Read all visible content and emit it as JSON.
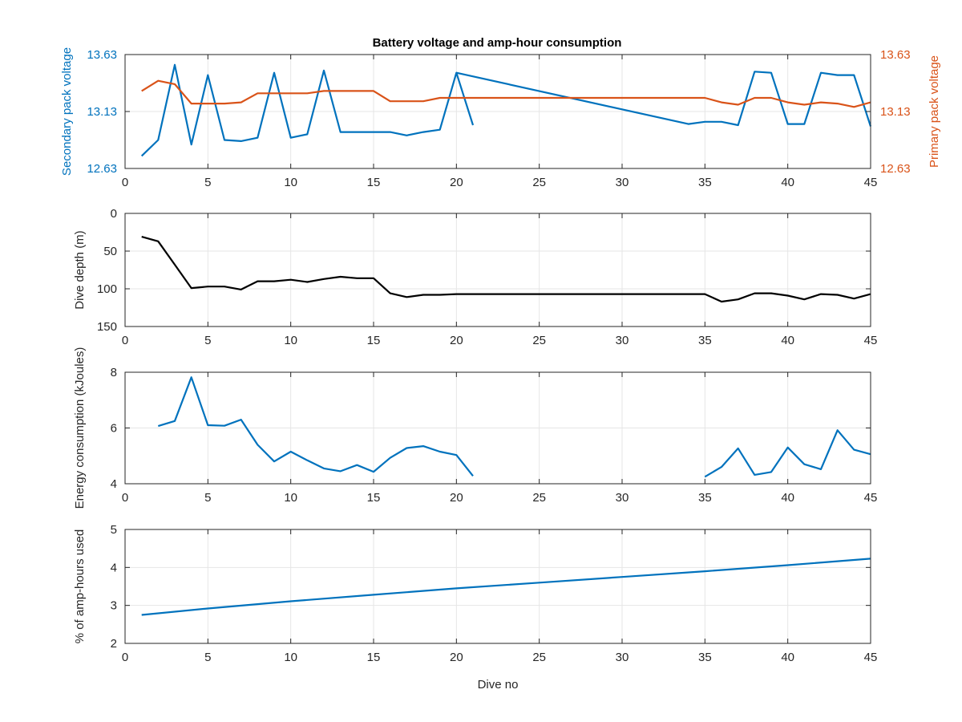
{
  "figure": {
    "title": "Battery voltage and amp-hour consumption"
  },
  "colors": {
    "blue": "#0072BD",
    "orange": "#D95319",
    "black": "#000000",
    "grid": "#e6e6e6",
    "axis": "#262626"
  },
  "chart_data": [
    {
      "type": "line",
      "title": "Battery voltage and amp-hour consumption",
      "xlabel": "",
      "ylabel": "Secondary pack voltage",
      "y2label": "Primary pack voltage",
      "xlim": [
        0,
        45
      ],
      "ylim": [
        12.63,
        13.63
      ],
      "y2lim": [
        12.63,
        13.63
      ],
      "xticks": [
        0,
        5,
        10,
        15,
        20,
        25,
        30,
        35,
        40,
        45
      ],
      "yticks": [
        12.63,
        13.13,
        13.63
      ],
      "ytick_labels": [
        "12.63",
        "13.13",
        "13.63"
      ],
      "y2ticks": [
        12.63,
        13.13,
        13.63
      ],
      "y2tick_labels": [
        "12.63",
        "13.13",
        "13.63"
      ],
      "grid": true,
      "series": [
        {
          "axis": "left",
          "color": "#0072BD",
          "x": [
            1,
            2,
            3,
            4,
            5,
            6,
            7,
            8,
            9,
            10,
            11,
            12,
            13,
            14,
            15,
            16,
            17,
            18,
            19,
            20,
            21
          ],
          "y": [
            12.74,
            12.88,
            13.54,
            12.84,
            13.45,
            12.88,
            12.87,
            12.9,
            13.47,
            12.9,
            12.93,
            13.49,
            12.95,
            12.95,
            12.95,
            12.95,
            12.92,
            12.95,
            12.97,
            13.47,
            13.01
          ]
        },
        {
          "axis": "left",
          "color": "#0072BD",
          "x": [
            20,
            34,
            35,
            36,
            37,
            38,
            39,
            40,
            41,
            42,
            43,
            44,
            45
          ],
          "y": [
            13.47,
            13.02,
            13.04,
            13.04,
            13.01,
            13.48,
            13.47,
            13.02,
            13.02,
            13.47,
            13.45,
            13.45,
            13.0
          ]
        },
        {
          "axis": "right",
          "color": "#D95319",
          "x": [
            1,
            2,
            3,
            4,
            5,
            6,
            7,
            8,
            9,
            10,
            11,
            12,
            13,
            14,
            15,
            16,
            17,
            18,
            19,
            20,
            25,
            30,
            35,
            36,
            37,
            38,
            39,
            40,
            41,
            42,
            43,
            44,
            45
          ],
          "y": [
            13.31,
            13.4,
            13.37,
            13.2,
            13.2,
            13.2,
            13.21,
            13.29,
            13.29,
            13.29,
            13.29,
            13.31,
            13.31,
            13.31,
            13.31,
            13.22,
            13.22,
            13.22,
            13.25,
            13.25,
            13.25,
            13.25,
            13.25,
            13.21,
            13.19,
            13.25,
            13.25,
            13.21,
            13.19,
            13.21,
            13.2,
            13.17,
            13.21
          ]
        }
      ]
    },
    {
      "type": "line",
      "xlabel": "",
      "ylabel": "Dive depth (m)",
      "xlim": [
        0,
        45
      ],
      "ylim": [
        0,
        150
      ],
      "y_reversed": true,
      "xticks": [
        0,
        5,
        10,
        15,
        20,
        25,
        30,
        35,
        40,
        45
      ],
      "yticks": [
        0,
        50,
        100,
        150
      ],
      "ytick_labels": [
        "0",
        "50",
        "100",
        "150"
      ],
      "grid": true,
      "series": [
        {
          "color": "#000000",
          "x": [
            1,
            2,
            3,
            4,
            5,
            6,
            7,
            8,
            9,
            10,
            11,
            12,
            13,
            14,
            15,
            16,
            17,
            18,
            19,
            20,
            25,
            30,
            35,
            36,
            37,
            38,
            39,
            40,
            41,
            42,
            43,
            44,
            45
          ],
          "y": [
            31,
            37,
            68,
            99,
            97,
            97,
            101,
            90,
            90,
            88,
            91,
            87,
            84,
            86,
            86,
            106,
            111,
            108,
            108,
            107,
            107,
            107,
            107,
            117,
            114,
            106,
            106,
            109,
            114,
            107,
            108,
            113,
            107
          ]
        }
      ]
    },
    {
      "type": "line",
      "xlabel": "",
      "ylabel": "Energy consumption (kJoules)",
      "xlim": [
        0,
        45
      ],
      "ylim": [
        4,
        8
      ],
      "xticks": [
        0,
        5,
        10,
        15,
        20,
        25,
        30,
        35,
        40,
        45
      ],
      "yticks": [
        4,
        6,
        8
      ],
      "ytick_labels": [
        "4",
        "6",
        "8"
      ],
      "grid": true,
      "series": [
        {
          "color": "#0072BD",
          "x": [
            2,
            3,
            4,
            5,
            6,
            7,
            8,
            9,
            10,
            11,
            12,
            13,
            14,
            15,
            16,
            17,
            18,
            19,
            20,
            21
          ],
          "y": [
            6.07,
            6.25,
            7.82,
            6.1,
            6.08,
            6.3,
            5.4,
            4.8,
            5.15,
            4.84,
            4.55,
            4.45,
            4.67,
            4.43,
            4.93,
            5.28,
            5.35,
            5.15,
            5.03,
            4.28
          ]
        },
        {
          "color": "#0072BD",
          "x": [
            35,
            36,
            37,
            38,
            39,
            40,
            41,
            42,
            43,
            44,
            45
          ],
          "y": [
            4.25,
            4.6,
            5.27,
            4.32,
            4.42,
            5.3,
            4.7,
            4.52,
            5.92,
            5.22,
            5.06
          ]
        }
      ]
    },
    {
      "type": "line",
      "xlabel": "Dive no",
      "ylabel": "% of amp-hours used",
      "xlim": [
        0,
        45
      ],
      "ylim": [
        2,
        5
      ],
      "xticks": [
        0,
        5,
        10,
        15,
        20,
        25,
        30,
        35,
        40,
        45
      ],
      "yticks": [
        2,
        3,
        4,
        5
      ],
      "ytick_labels": [
        "2",
        "3",
        "4",
        "5"
      ],
      "grid": true,
      "series": [
        {
          "color": "#0072BD",
          "x": [
            1,
            5,
            10,
            15,
            20,
            25,
            30,
            35,
            40,
            45
          ],
          "y": [
            2.75,
            2.92,
            3.11,
            3.28,
            3.45,
            3.6,
            3.75,
            3.9,
            4.06,
            4.23
          ]
        }
      ]
    }
  ]
}
